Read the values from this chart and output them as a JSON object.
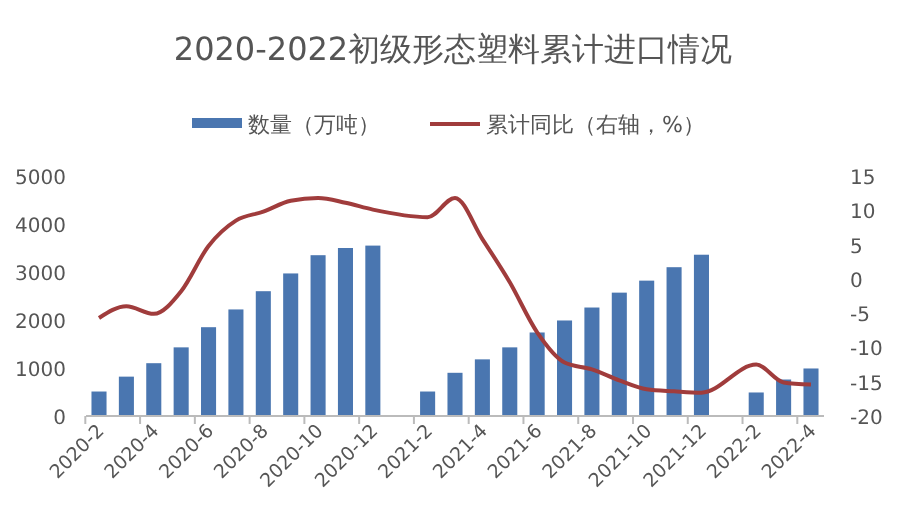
{
  "chart_data": {
    "type": "bar",
    "title": "2020-2022初级形态塑料累计进口情况",
    "categories": [
      "2020-2",
      null,
      "2020-4",
      null,
      "2020-6",
      null,
      "2020-8",
      null,
      "2020-10",
      null,
      "2020-12",
      null,
      "2021-2",
      null,
      "2021-4",
      null,
      "2021-6",
      null,
      "2021-8",
      null,
      "2021-10",
      null,
      "2021-12",
      null,
      "2022-2",
      null,
      "2022-4"
    ],
    "series": [
      {
        "name": "数量（万吨）",
        "color": "#4a76b0",
        "values": [
          510,
          820,
          1100,
          1430,
          1850,
          2220,
          2600,
          2970,
          3350,
          3500,
          3550,
          null,
          510,
          900,
          1180,
          1430,
          1740,
          1990,
          2260,
          2570,
          2820,
          3100,
          3360,
          null,
          490,
          760,
          990
        ]
      },
      {
        "name": "累计同比（右轴，%）",
        "type": "line",
        "axis": "y2",
        "color": "#a03c3c",
        "values": [
          -5.7,
          -4,
          -5.1,
          -1.8,
          4.8,
          8.5,
          9.8,
          11.4,
          11.8,
          11.1,
          10.1,
          null,
          9,
          11.8,
          5.8,
          -0.5,
          -7.8,
          -12.2,
          -13.2,
          -14.8,
          -16.1,
          -16.4,
          -16.6,
          null,
          -12.5,
          -15.1,
          -15.4
        ]
      }
    ],
    "ylim": [
      0,
      5000
    ],
    "yticks": [
      0,
      1000,
      2000,
      3000,
      4000,
      5000
    ],
    "y2lim": [
      -20,
      15
    ],
    "y2ticks": [
      -20,
      -15,
      -10,
      -5,
      0,
      5,
      10,
      15
    ],
    "legend": "top",
    "grid": false
  }
}
